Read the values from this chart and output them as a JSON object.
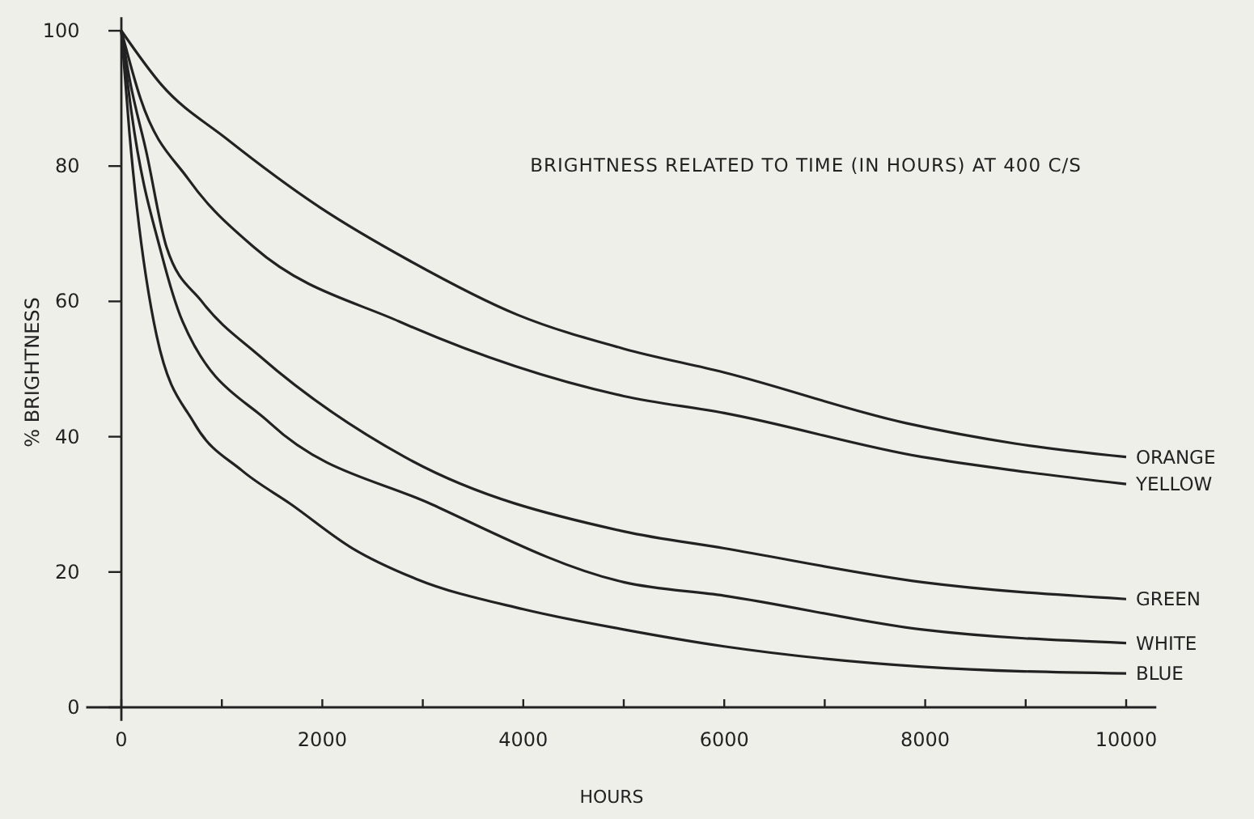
{
  "chart_data": {
    "type": "line",
    "title": "BRIGHTNESS RELATED TO TIME (IN HOURS) AT 400 C/S",
    "xlabel": "HOURS",
    "ylabel": "% BRIGHTNESS",
    "xlim": [
      -350,
      10300
    ],
    "ylim": [
      -2,
      102
    ],
    "xticks": [
      0,
      {
        "value": 1000,
        "label": null
      },
      2000,
      {
        "value": 3000,
        "label": null
      },
      4000,
      {
        "value": 5000,
        "label": null
      },
      6000,
      {
        "value": 7000,
        "label": null
      },
      8000,
      {
        "value": 9000,
        "label": null
      },
      10000
    ],
    "yticks": [
      0,
      20,
      40,
      60,
      80,
      100
    ],
    "grid": false,
    "marker": "none",
    "line_style": "solid",
    "series": [
      {
        "name": "ORANGE",
        "color": "#222222",
        "x": [
          0,
          400,
          1050,
          1965,
          2870,
          3945,
          5000,
          6000,
          7810,
          8890,
          10000
        ],
        "values": [
          100,
          92,
          84,
          74,
          66,
          58,
          53,
          49.5,
          42,
          39,
          37
        ]
      },
      {
        "name": "YELLOW",
        "color": "#222222",
        "x": [
          0,
          190,
          670,
          1320,
          2770,
          5000,
          6000,
          7970,
          8890,
          10000
        ],
        "values": [
          100,
          90,
          78,
          68,
          57,
          46,
          43.5,
          37,
          35,
          33
        ]
      },
      {
        "name": "GREEN",
        "color": "#222222",
        "x": [
          0,
          80,
          250,
          450,
          800,
          1370,
          2820,
          5000,
          6000,
          7970,
          10000
        ],
        "values": [
          100,
          93,
          82,
          68,
          60,
          52,
          37,
          26,
          23.5,
          18.5,
          16
        ]
      },
      {
        "name": "WHITE",
        "color": "#222222",
        "x": [
          0,
          100,
          400,
          610,
          1480,
          3090,
          5000,
          6000,
          7970,
          10000
        ],
        "values": [
          100,
          88,
          67,
          57,
          42,
          30,
          18.5,
          16.5,
          11.5,
          9.5
        ]
      },
      {
        "name": "BLUE",
        "color": "#222222",
        "x": [
          0,
          80,
          350,
          725,
          1200,
          1690,
          2300,
          2930,
          4000,
          5000,
          6000,
          7970,
          10000
        ],
        "values": [
          100,
          85,
          55,
          42,
          35,
          30,
          23.5,
          19,
          14.5,
          11.5,
          9,
          6,
          5
        ]
      }
    ]
  }
}
